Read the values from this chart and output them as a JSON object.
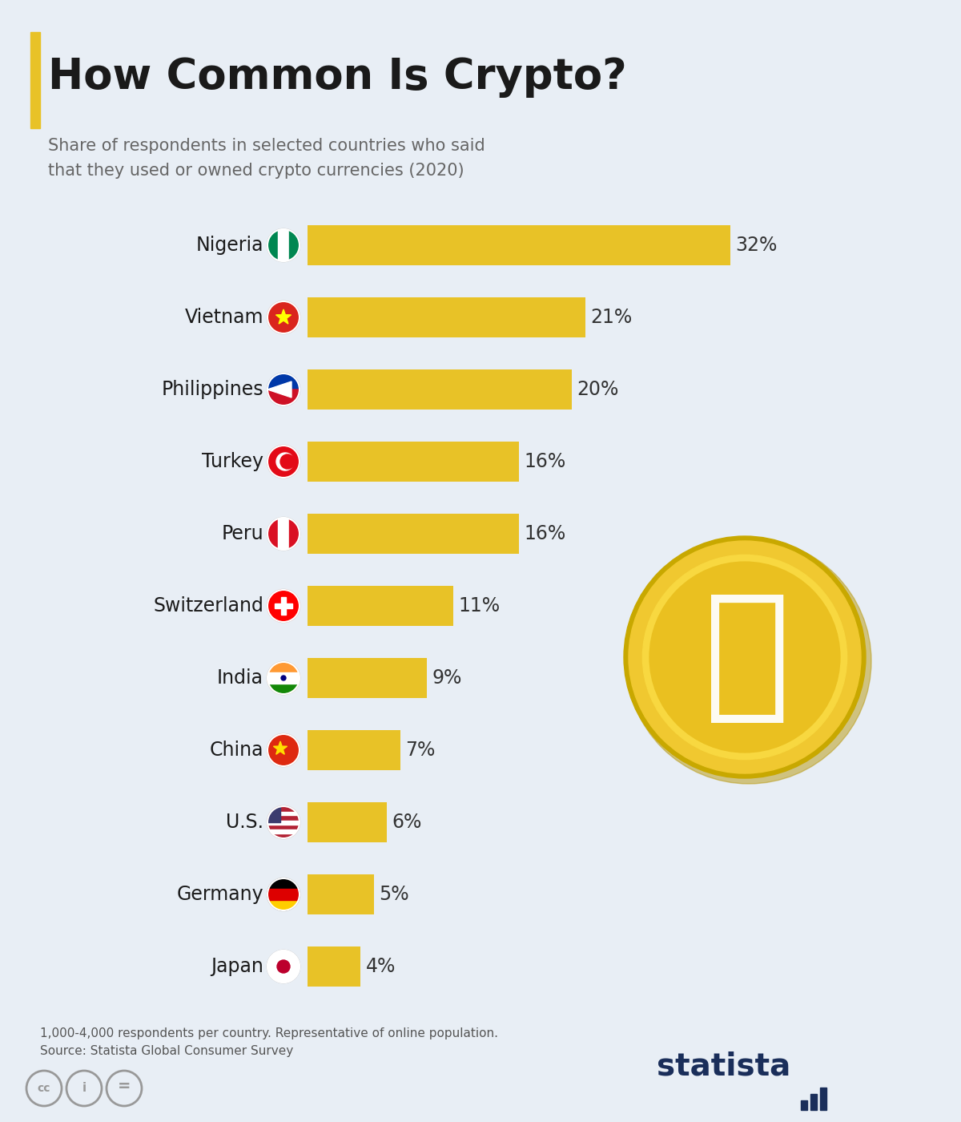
{
  "title": "How Common Is Crypto?",
  "subtitle": "Share of respondents in selected countries who said\nthat they used or owned crypto currencies (2020)",
  "categories": [
    "Nigeria",
    "Vietnam",
    "Philippines",
    "Turkey",
    "Peru",
    "Switzerland",
    "India",
    "China",
    "U.S.",
    "Germany",
    "Japan"
  ],
  "values": [
    32,
    21,
    20,
    16,
    16,
    11,
    9,
    7,
    6,
    5,
    4
  ],
  "bar_color": "#E8C227",
  "background_color": "#E8EEF5",
  "title_color": "#1a1a1a",
  "subtitle_color": "#666666",
  "value_label_color": "#333333",
  "title_fontsize": 38,
  "subtitle_fontsize": 15,
  "label_fontsize": 17,
  "value_fontsize": 17,
  "source_text": "1,000-4,000 respondents per country. Representative of online population.\nSource: Statista Global Consumer Survey",
  "accent_color": "#C8A800"
}
